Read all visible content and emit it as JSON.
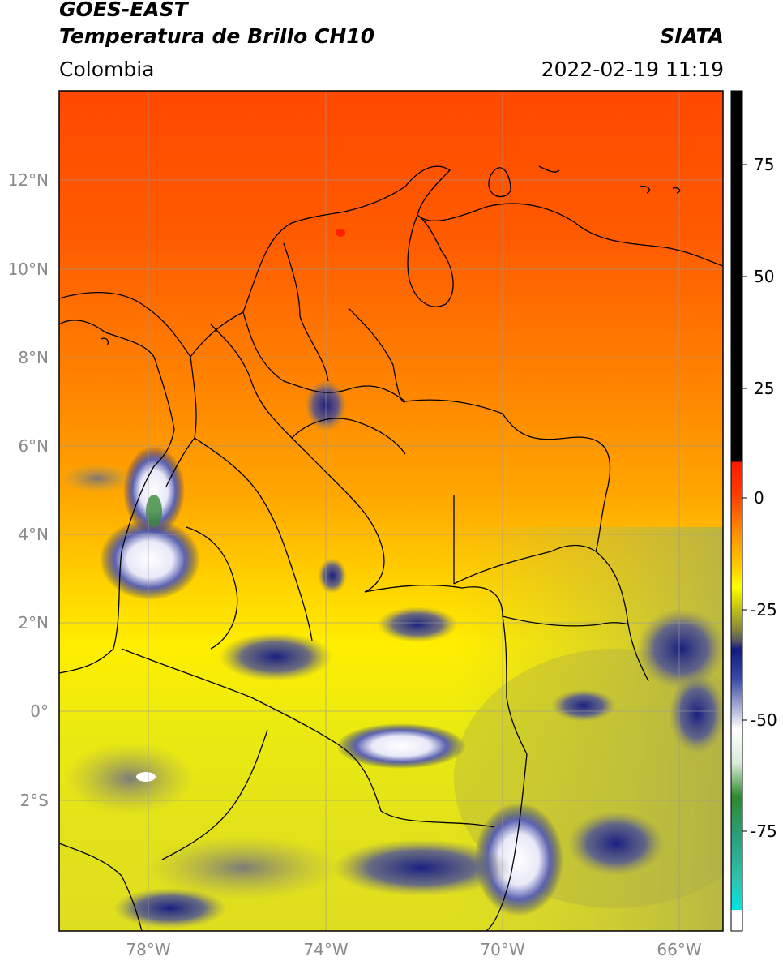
{
  "header": {
    "satellite": "GOES-EAST",
    "product": "Temperatura de Brillo CH10",
    "organization": "SIATA",
    "region": "Colombia",
    "timestamp": "2022-02-19 11:19"
  },
  "map": {
    "lat_labels": [
      "12°N",
      "10°N",
      "8°N",
      "6°N",
      "4°N",
      "2°N",
      "0°",
      "2°S"
    ],
    "lon_labels": [
      "78°W",
      "74°W",
      "70°W",
      "66°W"
    ],
    "extent": {
      "lon_min": -80,
      "lon_max": -65,
      "lat_min": -5,
      "lat_max": 14
    }
  },
  "colorbar": {
    "tick_labels": [
      "75",
      "50",
      "25",
      "0",
      "-25",
      "-50",
      "-75"
    ],
    "tick_values": [
      75,
      50,
      25,
      0,
      -25,
      -50,
      -75
    ],
    "range": [
      -97,
      90
    ],
    "colors": {
      "warm_black": "#000000",
      "red": "#ff1a00",
      "orange": "#ff8c00",
      "yellow": "#ffff00",
      "olive": "#9c9c3a",
      "navy": "#0b1a80",
      "white": "#ffffff",
      "green": "#2f8a2f",
      "teal": "#2ec4a6",
      "cyan": "#00e5e5"
    }
  }
}
